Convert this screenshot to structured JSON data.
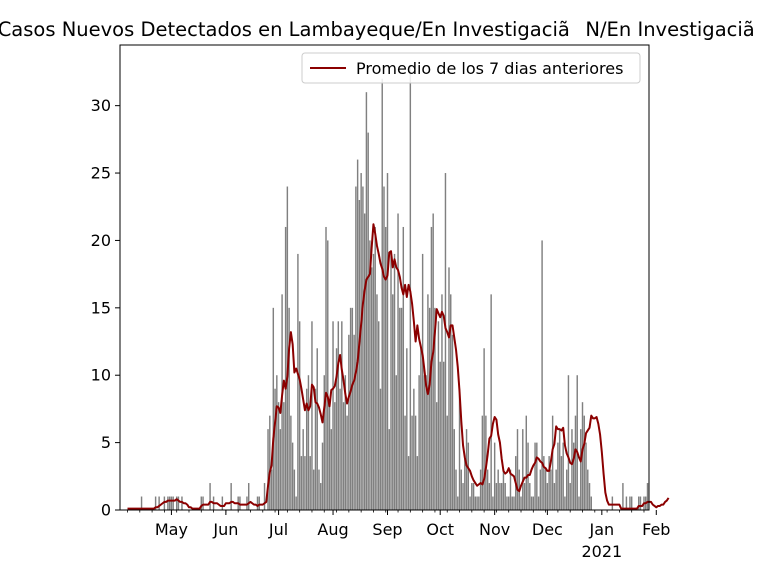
{
  "chart_data": {
    "type": "bar",
    "title": "Casos Nuevos Detectados en Lambayeque/En InvestigaciãN/En Investigaciã",
    "xlabel": "",
    "ylabel": "",
    "x_start_date": "2020-04-06",
    "ylim": [
      0,
      34.5
    ],
    "yticks": [
      0,
      5,
      10,
      15,
      20,
      25,
      30
    ],
    "xticks": [
      {
        "date": "2020-05-01",
        "label": "May"
      },
      {
        "date": "2020-06-01",
        "label": "Jun"
      },
      {
        "date": "2020-07-01",
        "label": "Jul"
      },
      {
        "date": "2020-08-01",
        "label": "Aug"
      },
      {
        "date": "2020-09-01",
        "label": "Sep"
      },
      {
        "date": "2020-10-01",
        "label": "Oct"
      },
      {
        "date": "2020-11-01",
        "label": "Nov"
      },
      {
        "date": "2020-12-01",
        "label": "Dec"
      },
      {
        "date": "2021-01-01",
        "label": "Jan",
        "sublabel": "2021"
      },
      {
        "date": "2021-02-01",
        "label": "Feb"
      }
    ],
    "legend": {
      "position": "upper right",
      "entries": [
        "Promedio de los 7 dias anteriores"
      ]
    },
    "bar_color": "#808080",
    "line_color": "#8b0000",
    "series": [
      {
        "name": "Casos",
        "kind": "bar",
        "values": [
          0,
          0,
          0,
          0,
          0,
          0,
          0,
          0,
          1,
          0,
          0,
          0,
          0,
          0,
          0,
          0,
          1,
          0,
          1,
          0,
          0,
          1,
          0,
          1,
          1,
          1,
          1,
          0,
          1,
          1,
          0,
          1,
          0,
          0,
          0,
          0,
          0,
          0,
          0,
          0,
          0,
          0,
          1,
          1,
          0,
          0,
          0,
          2,
          0,
          1,
          0,
          0,
          0,
          0,
          1,
          0,
          0,
          0,
          0,
          2,
          0,
          0,
          0,
          1,
          1,
          0,
          0,
          0,
          1,
          2,
          0,
          0,
          0,
          0,
          1,
          1,
          0,
          0,
          2,
          0,
          6,
          7,
          3,
          15,
          9,
          10,
          8,
          6,
          16,
          8,
          21,
          24,
          15,
          7,
          5,
          3,
          1,
          19,
          14,
          4,
          6,
          4,
          9,
          10,
          4,
          14,
          3,
          9,
          12,
          3,
          2,
          5,
          10,
          21,
          20,
          8,
          6,
          14,
          8,
          12,
          14,
          9,
          14,
          8,
          10,
          7,
          13,
          15,
          15,
          13,
          24,
          26,
          23,
          25,
          24,
          22,
          31,
          28,
          20,
          18,
          19,
          21,
          16,
          14,
          9,
          32,
          24,
          21,
          25,
          6,
          19,
          16,
          19,
          10,
          22,
          15,
          15,
          21,
          7,
          12,
          4,
          33,
          7,
          9,
          7,
          4,
          10,
          12,
          19,
          10,
          10,
          16,
          15,
          21,
          22,
          15,
          8,
          14,
          11,
          16,
          11,
          25,
          7,
          18,
          16,
          13,
          6,
          3,
          1,
          9,
          3,
          2,
          4,
          6,
          5,
          1,
          2,
          2,
          1,
          1,
          1,
          3,
          7,
          12,
          7,
          3,
          2,
          16,
          1,
          5,
          2,
          3,
          2,
          2,
          3,
          2,
          1,
          1,
          3,
          1,
          1,
          4,
          6,
          3,
          1,
          6,
          2,
          7,
          5,
          2,
          1,
          1,
          5,
          5,
          1,
          3,
          20,
          4,
          3,
          2,
          4,
          3,
          7,
          2,
          3,
          5,
          6,
          4,
          5,
          1,
          3,
          10,
          2,
          6,
          5,
          7,
          10,
          1,
          6,
          8,
          7,
          5,
          3,
          2,
          1,
          0,
          0,
          0,
          0,
          0,
          0,
          0,
          0,
          0,
          0,
          0,
          1,
          0,
          0,
          0,
          0,
          0,
          2,
          0,
          1,
          0,
          1,
          1,
          0,
          0,
          0,
          1,
          1,
          0,
          1,
          1,
          2
        ]
      },
      {
        "name": "Promedio de los 7 dias anteriores",
        "kind": "line",
        "values": [
          0.1,
          0.1,
          0.1,
          0.1,
          0.1,
          0.1,
          0.1,
          0.1,
          0.1,
          0.1,
          0.1,
          0.1,
          0.1,
          0.1,
          0.1,
          0.1,
          0.2,
          0.2,
          0.3,
          0.4,
          0.5,
          0.6,
          0.6,
          0.7,
          0.7,
          0.7,
          0.7,
          0.7,
          0.8,
          0.7,
          0.6,
          0.6,
          0.5,
          0.5,
          0.4,
          0.2,
          0.2,
          0.1,
          0.1,
          0.1,
          0.1,
          0.1,
          0.3,
          0.4,
          0.4,
          0.4,
          0.4,
          0.6,
          0.6,
          0.5,
          0.5,
          0.5,
          0.4,
          0.3,
          0.3,
          0.3,
          0.5,
          0.5,
          0.5,
          0.6,
          0.6,
          0.5,
          0.5,
          0.5,
          0.4,
          0.4,
          0.4,
          0.4,
          0.4,
          0.5,
          0.6,
          0.5,
          0.4,
          0.4,
          0.3,
          0.4,
          0.4,
          0.4,
          0.5,
          0.6,
          1.8,
          2.8,
          3.3,
          5.3,
          6.5,
          7.7,
          7.6,
          7.2,
          8.5,
          9.6,
          9.0,
          9.9,
          12.0,
          13.2,
          12.3,
          10.2,
          10.5,
          10.1,
          9.7,
          9.0,
          8.2,
          7.4,
          7.9,
          7.4,
          7.7,
          9.3,
          9.1,
          8.0,
          7.9,
          7.6,
          7.1,
          6.5,
          7.6,
          8.7,
          8.4,
          7.7,
          8.9,
          9.0,
          9.2,
          9.9,
          10.9,
          11.5,
          10.4,
          9.6,
          8.6,
          7.9,
          8.4,
          8.8,
          9.3,
          9.6,
          10.2,
          11.0,
          12.4,
          13.8,
          15.3,
          16.3,
          17.1,
          17.3,
          17.5,
          19.5,
          21.2,
          20.5,
          19.6,
          19.0,
          18.3,
          17.9,
          17.3,
          17.1,
          17.4,
          19.1,
          19.2,
          18.0,
          18.6,
          18.0,
          17.8,
          17.3,
          16.5,
          16.0,
          16.7,
          15.8,
          16.7,
          16.2,
          15.3,
          14.0,
          12.5,
          13.7,
          12.7,
          12.1,
          11.5,
          10.4,
          9.2,
          8.6,
          9.3,
          11.0,
          11.7,
          13.2,
          14.9,
          14.6,
          14.3,
          14.7,
          14.4,
          13.5,
          13.2,
          12.8,
          13.7,
          13.7,
          12.8,
          11.9,
          10.6,
          8.8,
          6.6,
          4.8,
          3.9,
          3.3,
          3.1,
          2.9,
          2.5,
          2.2,
          2.0,
          1.8,
          1.9,
          2.0,
          1.9,
          2.3,
          3.1,
          4.1,
          5.3,
          5.5,
          6.4,
          6.9,
          6.7,
          5.6,
          5.0,
          3.8,
          2.9,
          2.7,
          2.8,
          3.1,
          2.7,
          2.6,
          2.5,
          2.0,
          1.5,
          1.4,
          1.8,
          2.1,
          2.4,
          2.4,
          2.6,
          2.6,
          3.0,
          3.3,
          3.5,
          3.9,
          3.8,
          3.6,
          3.5,
          3.2,
          3.1,
          2.9,
          2.9,
          3.6,
          4.5,
          4.9,
          6.2,
          6.0,
          6.0,
          5.9,
          6.1,
          4.8,
          4.2,
          3.9,
          3.5,
          3.4,
          3.8,
          4.5,
          4.3,
          3.9,
          3.6,
          4.5,
          4.9,
          5.7,
          5.9,
          6.1,
          7.0,
          6.8,
          6.8,
          6.9,
          6.4,
          5.6,
          4.3,
          2.7,
          1.3,
          0.7,
          0.4,
          0.4,
          0.4,
          0.4,
          0.4,
          0.4,
          0.4,
          0.1,
          0.1,
          0.1,
          0.1,
          0.1,
          0.1,
          0.1,
          0.1,
          0.1,
          0.1,
          0.3,
          0.3,
          0.3,
          0.5,
          0.5,
          0.6,
          0.6,
          0.6,
          0.4,
          0.3,
          0.2,
          0.3,
          0.3,
          0.4,
          0.4,
          0.6,
          0.7,
          0.9
        ]
      }
    ]
  }
}
